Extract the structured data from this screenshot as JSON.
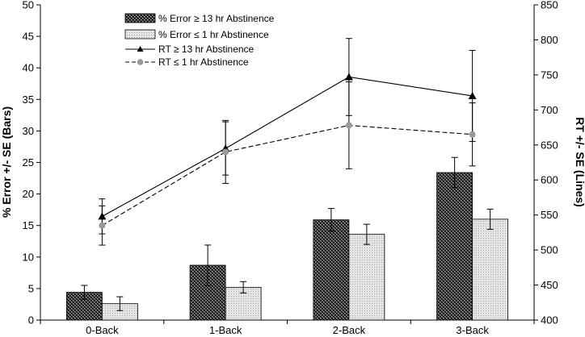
{
  "chart_data": {
    "type": "bar",
    "categories": [
      "0-Back",
      "1-Back",
      "2-Back",
      "3-Back"
    ],
    "left_axis": {
      "label": "% Error +/- SE (Bars)",
      "ylim": [
        0,
        50
      ],
      "ticks": [
        "0",
        "5",
        "10",
        "15",
        "20",
        "25",
        "30",
        "35",
        "40",
        "45",
        "50"
      ]
    },
    "right_axis": {
      "label": "RT +/- SE (Lines)",
      "ylim": [
        400,
        850
      ],
      "ticks": [
        "400",
        "450",
        "500",
        "550",
        "600",
        "650",
        "700",
        "750",
        "800",
        "850"
      ]
    },
    "bar_series": [
      {
        "name": "% Error ≥ 13 hr Abstinence",
        "values": [
          4.4,
          8.7,
          15.9,
          23.4
        ],
        "errors": [
          1.1,
          3.2,
          1.8,
          2.4
        ],
        "pattern": "dark-checker"
      },
      {
        "name": "% Error ≤ 1 hr Abstinence",
        "values": [
          2.6,
          5.2,
          13.6,
          16.0
        ],
        "errors": [
          1.1,
          0.9,
          1.6,
          1.6
        ],
        "pattern": "light-dots"
      }
    ],
    "line_series": [
      {
        "name": "RT ≥ 13 hr Abstinence",
        "values": [
          548,
          645,
          747,
          720
        ],
        "errors": [
          25,
          38,
          55,
          65
        ],
        "marker": "triangle",
        "style": "solid"
      },
      {
        "name": "RT ≤ 1 hr Abstinence",
        "values": [
          535,
          640,
          678,
          665
        ],
        "errors": [
          28,
          45,
          62,
          45
        ],
        "marker": "circle",
        "style": "dashed"
      }
    ],
    "legend_position": "top-center",
    "grid": false
  }
}
